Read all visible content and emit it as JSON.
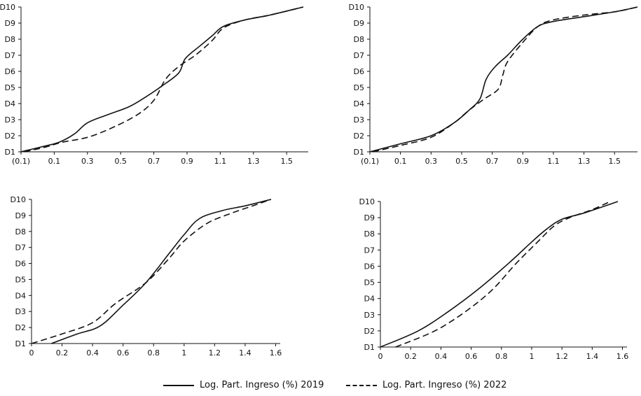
{
  "chart_data": [
    {
      "type": "line",
      "x_ticks": [
        "(0.1)",
        "0.1",
        "0.3",
        "0.5",
        "0.7",
        "0.9",
        "1.1",
        "1.3",
        "1.5"
      ],
      "x_tick_values": [
        -0.1,
        0.1,
        0.3,
        0.5,
        0.7,
        0.9,
        1.1,
        1.3,
        1.5
      ],
      "y_ticks": [
        "D1",
        "D2",
        "D3",
        "D4",
        "D5",
        "D6",
        "D7",
        "D8",
        "D9",
        "D10"
      ],
      "xlim": [
        -0.1,
        1.63
      ],
      "ylim": [
        1,
        10
      ],
      "series": [
        {
          "name": "Log. Part. Ingreso (%) 2019",
          "style": "solid",
          "x": [
            -0.1,
            0.02,
            0.13,
            0.22,
            0.3,
            0.42,
            0.55,
            0.65,
            0.75,
            0.85,
            0.89,
            0.98,
            1.05,
            1.12,
            1.25,
            1.4,
            1.6
          ],
          "y": [
            1.0,
            1.3,
            1.6,
            2.1,
            2.8,
            3.3,
            3.8,
            4.4,
            5.1,
            5.9,
            6.8,
            7.6,
            8.2,
            8.8,
            9.2,
            9.5,
            10.0
          ]
        },
        {
          "name": "Log. Part. Ingreso (%) 2022",
          "style": "dashed",
          "x": [
            -0.08,
            0.05,
            0.15,
            0.3,
            0.45,
            0.6,
            0.7,
            0.77,
            0.85,
            0.95,
            1.05,
            1.12,
            1.25,
            1.4,
            1.6
          ],
          "y": [
            1.0,
            1.3,
            1.6,
            1.9,
            2.5,
            3.3,
            4.2,
            5.5,
            6.3,
            7.0,
            7.9,
            8.7,
            9.2,
            9.5,
            10.0
          ]
        }
      ]
    },
    {
      "type": "line",
      "x_ticks": [
        "(0.1)",
        "0.1",
        "0.3",
        "0.5",
        "0.7",
        "0.9",
        "1.1",
        "1.3",
        "1.5"
      ],
      "x_tick_values": [
        -0.1,
        0.1,
        0.3,
        0.5,
        0.7,
        0.9,
        1.1,
        1.3,
        1.5
      ],
      "y_ticks": [
        "D1",
        "D2",
        "D3",
        "D4",
        "D5",
        "D6",
        "D7",
        "D8",
        "D9",
        "D10"
      ],
      "xlim": [
        -0.1,
        1.65
      ],
      "ylim": [
        1,
        10
      ],
      "series": [
        {
          "name": "Log. Part. Ingreso (%) 2019",
          "style": "solid",
          "x": [
            -0.1,
            0.1,
            0.3,
            0.45,
            0.55,
            0.62,
            0.66,
            0.72,
            0.8,
            0.9,
            1.0,
            1.1,
            1.3,
            1.5,
            1.65
          ],
          "y": [
            1.0,
            1.5,
            2.0,
            2.8,
            3.6,
            4.3,
            5.5,
            6.3,
            7.0,
            8.0,
            8.8,
            9.1,
            9.4,
            9.7,
            10.0
          ]
        },
        {
          "name": "Log. Part. Ingreso (%) 2022",
          "style": "dashed",
          "x": [
            -0.08,
            0.1,
            0.3,
            0.45,
            0.55,
            0.65,
            0.74,
            0.77,
            0.8,
            0.9,
            1.0,
            1.1,
            1.3,
            1.5,
            1.65
          ],
          "y": [
            1.0,
            1.4,
            1.9,
            2.8,
            3.6,
            4.3,
            4.9,
            5.8,
            6.6,
            7.8,
            8.8,
            9.2,
            9.5,
            9.7,
            10.0
          ]
        }
      ]
    },
    {
      "type": "line",
      "x_ticks": [
        "0",
        "0.2",
        "0.4",
        "0.6",
        "0.8",
        "1",
        "1.2",
        "1.4",
        "1.6"
      ],
      "x_tick_values": [
        0,
        0.2,
        0.4,
        0.6,
        0.8,
        1.0,
        1.2,
        1.4,
        1.6
      ],
      "y_ticks": [
        "D1",
        "D2",
        "D3",
        "D4",
        "D5",
        "D6",
        "D7",
        "D8",
        "D9",
        "D10"
      ],
      "xlim": [
        0,
        1.63
      ],
      "ylim": [
        1,
        10
      ],
      "series": [
        {
          "name": "Log. Part. Ingreso (%) 2019",
          "style": "solid",
          "x": [
            0.13,
            0.3,
            0.45,
            0.6,
            0.75,
            0.9,
            1.0,
            1.1,
            1.25,
            1.4,
            1.57
          ],
          "y": [
            1.0,
            1.6,
            2.1,
            3.4,
            4.8,
            6.6,
            7.8,
            8.8,
            9.3,
            9.6,
            10.0
          ]
        },
        {
          "name": "Log. Part. Ingreso (%) 2022",
          "style": "dashed",
          "x": [
            0.0,
            0.2,
            0.4,
            0.55,
            0.75,
            0.9,
            1.0,
            1.15,
            1.3,
            1.45,
            1.57
          ],
          "y": [
            1.0,
            1.6,
            2.3,
            3.5,
            4.8,
            6.3,
            7.4,
            8.5,
            9.1,
            9.6,
            10.0
          ]
        }
      ]
    },
    {
      "type": "line",
      "x_ticks": [
        "0",
        "0.2",
        "0.4",
        "0.6",
        "0.8",
        "1",
        "1.2",
        "1.4",
        "1.6"
      ],
      "x_tick_values": [
        0,
        0.2,
        0.4,
        0.6,
        0.8,
        1.0,
        1.2,
        1.4,
        1.6
      ],
      "y_ticks": [
        "D1",
        "D2",
        "D3",
        "D4",
        "D5",
        "D6",
        "D7",
        "D8",
        "D9",
        "D10"
      ],
      "xlim": [
        0,
        1.63
      ],
      "ylim": [
        1,
        10
      ],
      "series": [
        {
          "name": "Log. Part. Ingreso (%) 2019",
          "style": "solid",
          "x": [
            0.0,
            0.25,
            0.45,
            0.65,
            0.85,
            1.0,
            1.1,
            1.2,
            1.35,
            1.57
          ],
          "y": [
            1.0,
            2.0,
            3.2,
            4.6,
            6.2,
            7.5,
            8.3,
            8.9,
            9.3,
            10.0
          ]
        },
        {
          "name": "Log. Part. Ingreso (%) 2022",
          "style": "dashed",
          "x": [
            0.1,
            0.4,
            0.7,
            0.9,
            1.05,
            1.15,
            1.25,
            1.4,
            1.52
          ],
          "y": [
            1.0,
            2.2,
            4.2,
            6.2,
            7.6,
            8.5,
            9.0,
            9.5,
            10.0
          ]
        }
      ]
    }
  ],
  "legend": {
    "items": [
      {
        "label": "Log. Part. Ingreso (%) 2019",
        "style": "solid"
      },
      {
        "label": "Log. Part. Ingreso (%) 2022",
        "style": "dashed"
      }
    ]
  }
}
